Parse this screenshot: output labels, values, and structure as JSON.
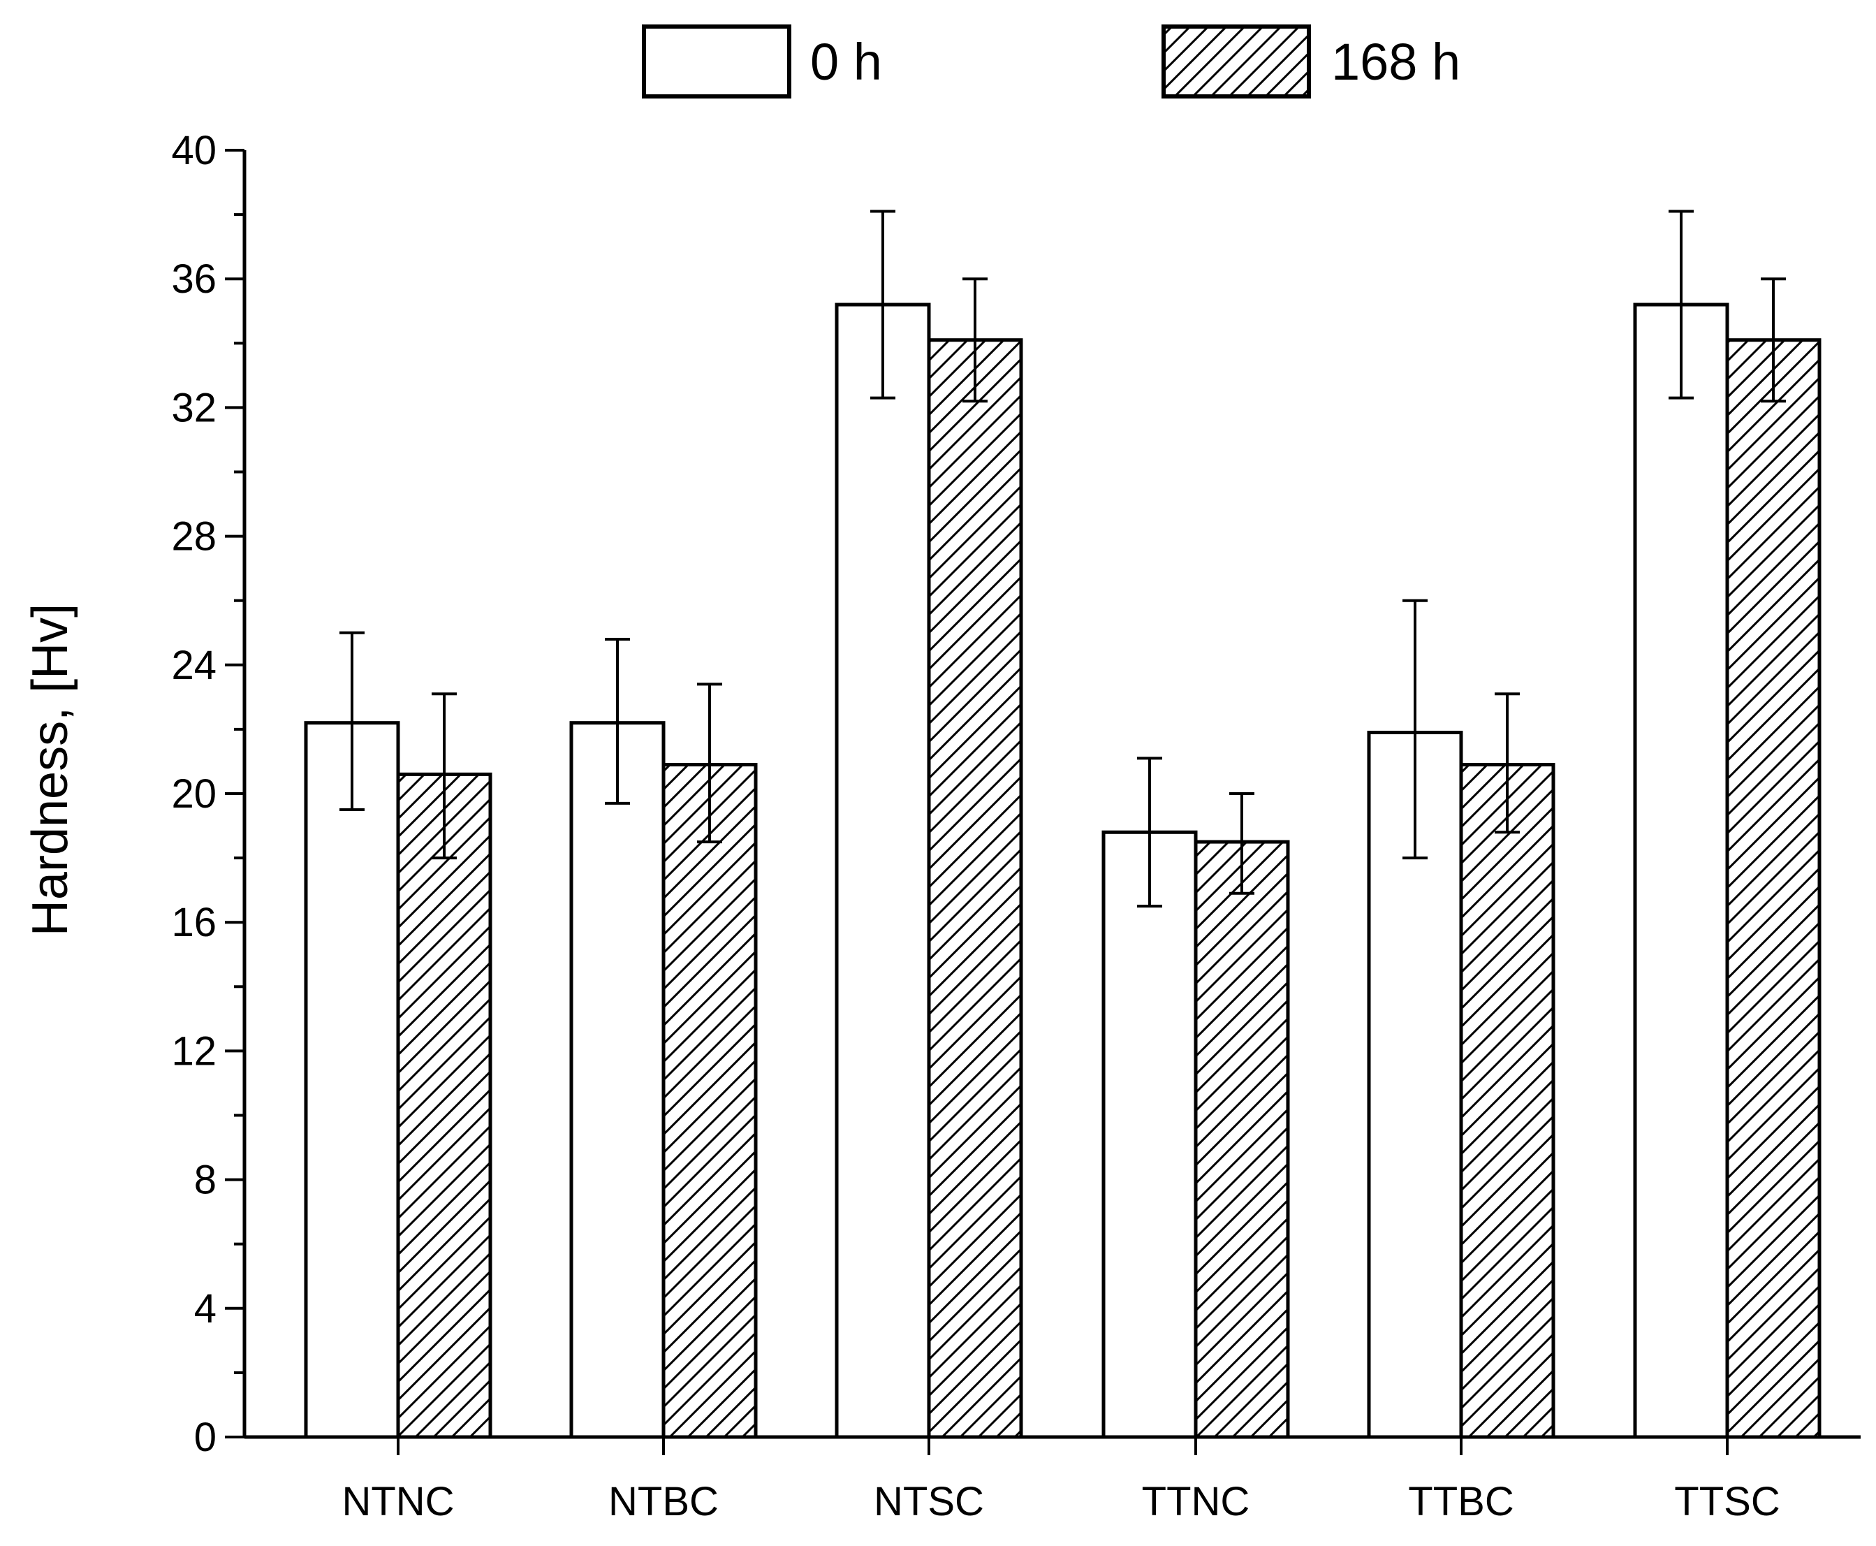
{
  "chart_data": {
    "type": "bar",
    "title": "",
    "xlabel": "",
    "ylabel": "Hardness, [Hv]",
    "ylim": [
      0,
      40
    ],
    "yticks": [
      0,
      4,
      8,
      12,
      16,
      20,
      24,
      28,
      32,
      36,
      40
    ],
    "grid": false,
    "legend_position": "top-center",
    "categories": [
      "NTNC",
      "NTBC",
      "NTSC",
      "TTNC",
      "TTBC",
      "TTSC"
    ],
    "series": [
      {
        "name": "0 h",
        "pattern": "none",
        "values": [
          22.2,
          22.2,
          35.2,
          18.8,
          21.9,
          35.2
        ],
        "err_low": [
          19.5,
          19.7,
          32.3,
          16.5,
          18.0,
          32.3
        ],
        "err_high": [
          25.0,
          24.8,
          38.1,
          21.1,
          26.0,
          38.1
        ]
      },
      {
        "name": "168 h",
        "pattern": "hatched",
        "values": [
          20.6,
          20.9,
          34.1,
          18.5,
          20.9,
          34.1
        ],
        "err_low": [
          18.0,
          18.5,
          32.2,
          16.9,
          18.8,
          32.2
        ],
        "err_high": [
          23.1,
          23.4,
          36.0,
          20.0,
          23.1,
          36.0
        ]
      }
    ],
    "colors": {
      "bar_fill": "#ffffff",
      "stroke": "#000000"
    }
  }
}
